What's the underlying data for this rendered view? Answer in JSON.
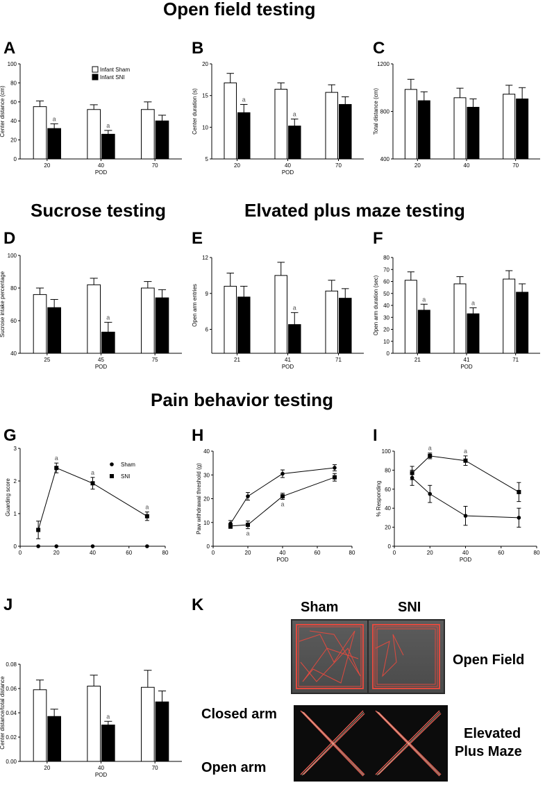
{
  "headings": {
    "open_field": "Open field testing",
    "sucrose": "Sucrose  testing",
    "epm": "Elvated plus maze testing",
    "pain": "Pain behavior testing"
  },
  "panel_letters": {
    "A": "A",
    "B": "B",
    "C": "C",
    "D": "D",
    "E": "E",
    "F": "F",
    "G": "G",
    "H": "H",
    "I": "I",
    "J": "J",
    "K": "K"
  },
  "legend_bar": {
    "sham": "Infant Sham",
    "sni": "Infant SNI"
  },
  "legend_line": {
    "sham": "Sham",
    "sni": "SNI"
  },
  "colors": {
    "sham_fill": "#ffffff",
    "sni_fill": "#000000",
    "k_photo_top": "#555555",
    "k_photo_bottom": "#111111",
    "trace": "#e04a3f"
  },
  "photo": {
    "sham": "Sham",
    "sni": "SNI",
    "open_field": "Open Field",
    "closed_arm": "Closed arm",
    "open_arm": "Open arm",
    "epm_line1": "Elevated",
    "epm_line2": "Plus Maze"
  },
  "chart_data": [
    {
      "id": "A",
      "type": "bar",
      "categories": [
        "20",
        "40",
        "70"
      ],
      "xlabel": "POD",
      "ylabel": "Center distance (cm)",
      "ylim": [
        0,
        100
      ],
      "yticks": [
        "0",
        "20",
        "40",
        "60",
        "80",
        "100"
      ],
      "series": [
        {
          "name": "Infant Sham",
          "values": [
            55,
            52,
            52
          ],
          "err": [
            6,
            5,
            8
          ]
        },
        {
          "name": "Infant SNI",
          "values": [
            32,
            26,
            40
          ],
          "err": [
            5,
            4,
            6
          ],
          "marks": [
            "a",
            "a",
            ""
          ]
        }
      ],
      "legend": "top-left"
    },
    {
      "id": "B",
      "type": "bar",
      "categories": [
        "20",
        "40",
        "70"
      ],
      "xlabel": "POD",
      "ylabel": "Center duration (s)",
      "ylim": [
        5,
        20
      ],
      "yticks": [
        "5",
        "10",
        "15",
        "20"
      ],
      "series": [
        {
          "name": "Infant Sham",
          "values": [
            17,
            16,
            15.5
          ],
          "err": [
            1.5,
            1,
            1.2
          ]
        },
        {
          "name": "Infant SNI",
          "values": [
            12.3,
            10.2,
            13.6
          ],
          "err": [
            1.3,
            1.1,
            1.2
          ],
          "marks": [
            "a",
            "a",
            ""
          ]
        }
      ]
    },
    {
      "id": "C",
      "type": "bar",
      "categories": [
        "20",
        "40",
        "70"
      ],
      "xlabel": "",
      "ylabel": "Total distance (cm)",
      "ylim": [
        400,
        1200
      ],
      "yticks": [
        "400",
        "800",
        "1200"
      ],
      "series": [
        {
          "name": "Infant Sham",
          "values": [
            985,
            915,
            945
          ],
          "err": [
            85,
            80,
            75
          ]
        },
        {
          "name": "Infant SNI",
          "values": [
            890,
            835,
            905
          ],
          "err": [
            75,
            70,
            95
          ],
          "marks": [
            "",
            "",
            ""
          ]
        }
      ]
    },
    {
      "id": "D",
      "type": "bar",
      "categories": [
        "25",
        "45",
        "75"
      ],
      "xlabel": "POD",
      "ylabel": "Sucrose intake percentage",
      "ylim": [
        40,
        100
      ],
      "yticks": [
        "40",
        "60",
        "80",
        "100"
      ],
      "series": [
        {
          "name": "Infant Sham",
          "values": [
            76,
            82,
            80
          ],
          "err": [
            4,
            4,
            4
          ]
        },
        {
          "name": "Infant SNI",
          "values": [
            68,
            53,
            74
          ],
          "err": [
            5,
            6,
            5
          ],
          "marks": [
            "",
            "a",
            ""
          ]
        }
      ]
    },
    {
      "id": "E",
      "type": "bar",
      "categories": [
        "21",
        "41",
        "71"
      ],
      "xlabel": "POD",
      "ylabel": "Open arm entries",
      "ylim": [
        4,
        12
      ],
      "yticks": [
        "6",
        "9",
        "12"
      ],
      "series": [
        {
          "name": "Infant Sham",
          "values": [
            9.6,
            10.5,
            9.2
          ],
          "err": [
            1.1,
            1.1,
            0.9
          ]
        },
        {
          "name": "Infant SNI",
          "values": [
            8.7,
            6.4,
            8.6
          ],
          "err": [
            0.9,
            1,
            0.8
          ],
          "marks": [
            "",
            "a",
            ""
          ]
        }
      ]
    },
    {
      "id": "F",
      "type": "bar",
      "categories": [
        "21",
        "41",
        "71"
      ],
      "xlabel": "POD",
      "ylabel": "Open arm duration (sec)",
      "ylim": [
        0,
        80
      ],
      "yticks": [
        "0",
        "10",
        "20",
        "30",
        "40",
        "50",
        "60",
        "70",
        "80"
      ],
      "series": [
        {
          "name": "Infant Sham",
          "values": [
            61,
            58,
            62
          ],
          "err": [
            7,
            6,
            7
          ]
        },
        {
          "name": "Infant SNI",
          "values": [
            36,
            33,
            51
          ],
          "err": [
            5,
            5,
            7
          ],
          "marks": [
            "a",
            "a",
            ""
          ]
        }
      ]
    },
    {
      "id": "G",
      "type": "line",
      "xlabel": "",
      "ylabel": "Guarding score",
      "xlim": [
        0,
        80
      ],
      "ylim": [
        0,
        3
      ],
      "xticks": [
        "0",
        "20",
        "40",
        "60",
        "80"
      ],
      "yticks": [
        "0",
        "1",
        "2",
        "3"
      ],
      "legend": "right",
      "series": [
        {
          "name": "Sham",
          "marker": "circle",
          "x": [
            10,
            20,
            40,
            70
          ],
          "y": [
            0,
            0,
            0,
            0
          ],
          "err": [
            0,
            0,
            0,
            0
          ]
        },
        {
          "name": "SNI",
          "marker": "square",
          "x": [
            10,
            20,
            40,
            70
          ],
          "y": [
            0.5,
            2.4,
            1.93,
            0.92
          ],
          "err": [
            0.27,
            0.15,
            0.18,
            0.13
          ],
          "marks": [
            "",
            "a",
            "a",
            "a"
          ]
        }
      ]
    },
    {
      "id": "H",
      "type": "line",
      "xlabel": "POD",
      "ylabel": "Paw withdrawal threshold (g)",
      "xlim": [
        0,
        80
      ],
      "ylim": [
        0,
        40
      ],
      "xticks": [
        "0",
        "20",
        "40",
        "60",
        "80"
      ],
      "yticks": [
        "0",
        "10",
        "20",
        "30",
        "40"
      ],
      "series": [
        {
          "name": "Sham",
          "marker": "circle",
          "x": [
            10,
            20,
            40,
            70
          ],
          "y": [
            9.5,
            21,
            30.5,
            33
          ],
          "err": [
            1.3,
            1.6,
            1.6,
            1.3
          ]
        },
        {
          "name": "SNI",
          "marker": "square",
          "x": [
            10,
            20,
            40,
            70
          ],
          "y": [
            8.5,
            9,
            21,
            29
          ],
          "err": [
            1,
            1.6,
            1.3,
            1.6
          ],
          "marks": [
            "",
            "a",
            "a",
            ""
          ]
        }
      ]
    },
    {
      "id": "I",
      "type": "line",
      "xlabel": "POD",
      "ylabel": "% Responding",
      "xlim": [
        0,
        80
      ],
      "ylim": [
        0,
        100
      ],
      "xticks": [
        "0",
        "20",
        "40",
        "60",
        "80"
      ],
      "yticks": [
        "0",
        "20",
        "40",
        "60",
        "80",
        "100"
      ],
      "series": [
        {
          "name": "Sham",
          "marker": "circle",
          "x": [
            10,
            20,
            40,
            70
          ],
          "y": [
            72,
            55,
            32,
            30
          ],
          "err": [
            8,
            9,
            10,
            10
          ]
        },
        {
          "name": "SNI",
          "marker": "square",
          "x": [
            10,
            20,
            40,
            70
          ],
          "y": [
            77,
            95,
            90,
            57
          ],
          "err": [
            7,
            3,
            5,
            10
          ],
          "marks": [
            "",
            "a",
            "a",
            ""
          ]
        }
      ]
    },
    {
      "id": "J",
      "type": "bar",
      "categories": [
        "20",
        "40",
        "70"
      ],
      "xlabel": "POD",
      "ylabel": "Center distance/total distance",
      "ylim": [
        0,
        0.08
      ],
      "yticks": [
        "0.00",
        "0.02",
        "0.04",
        "0.06",
        "0.08"
      ],
      "series": [
        {
          "name": "Infant Sham",
          "values": [
            0.059,
            0.062,
            0.061
          ],
          "err": [
            0.008,
            0.009,
            0.014
          ]
        },
        {
          "name": "Infant SNI",
          "values": [
            0.037,
            0.03,
            0.049
          ],
          "err": [
            0.006,
            0.003,
            0.009
          ],
          "marks": [
            "",
            "a",
            ""
          ]
        }
      ]
    }
  ]
}
